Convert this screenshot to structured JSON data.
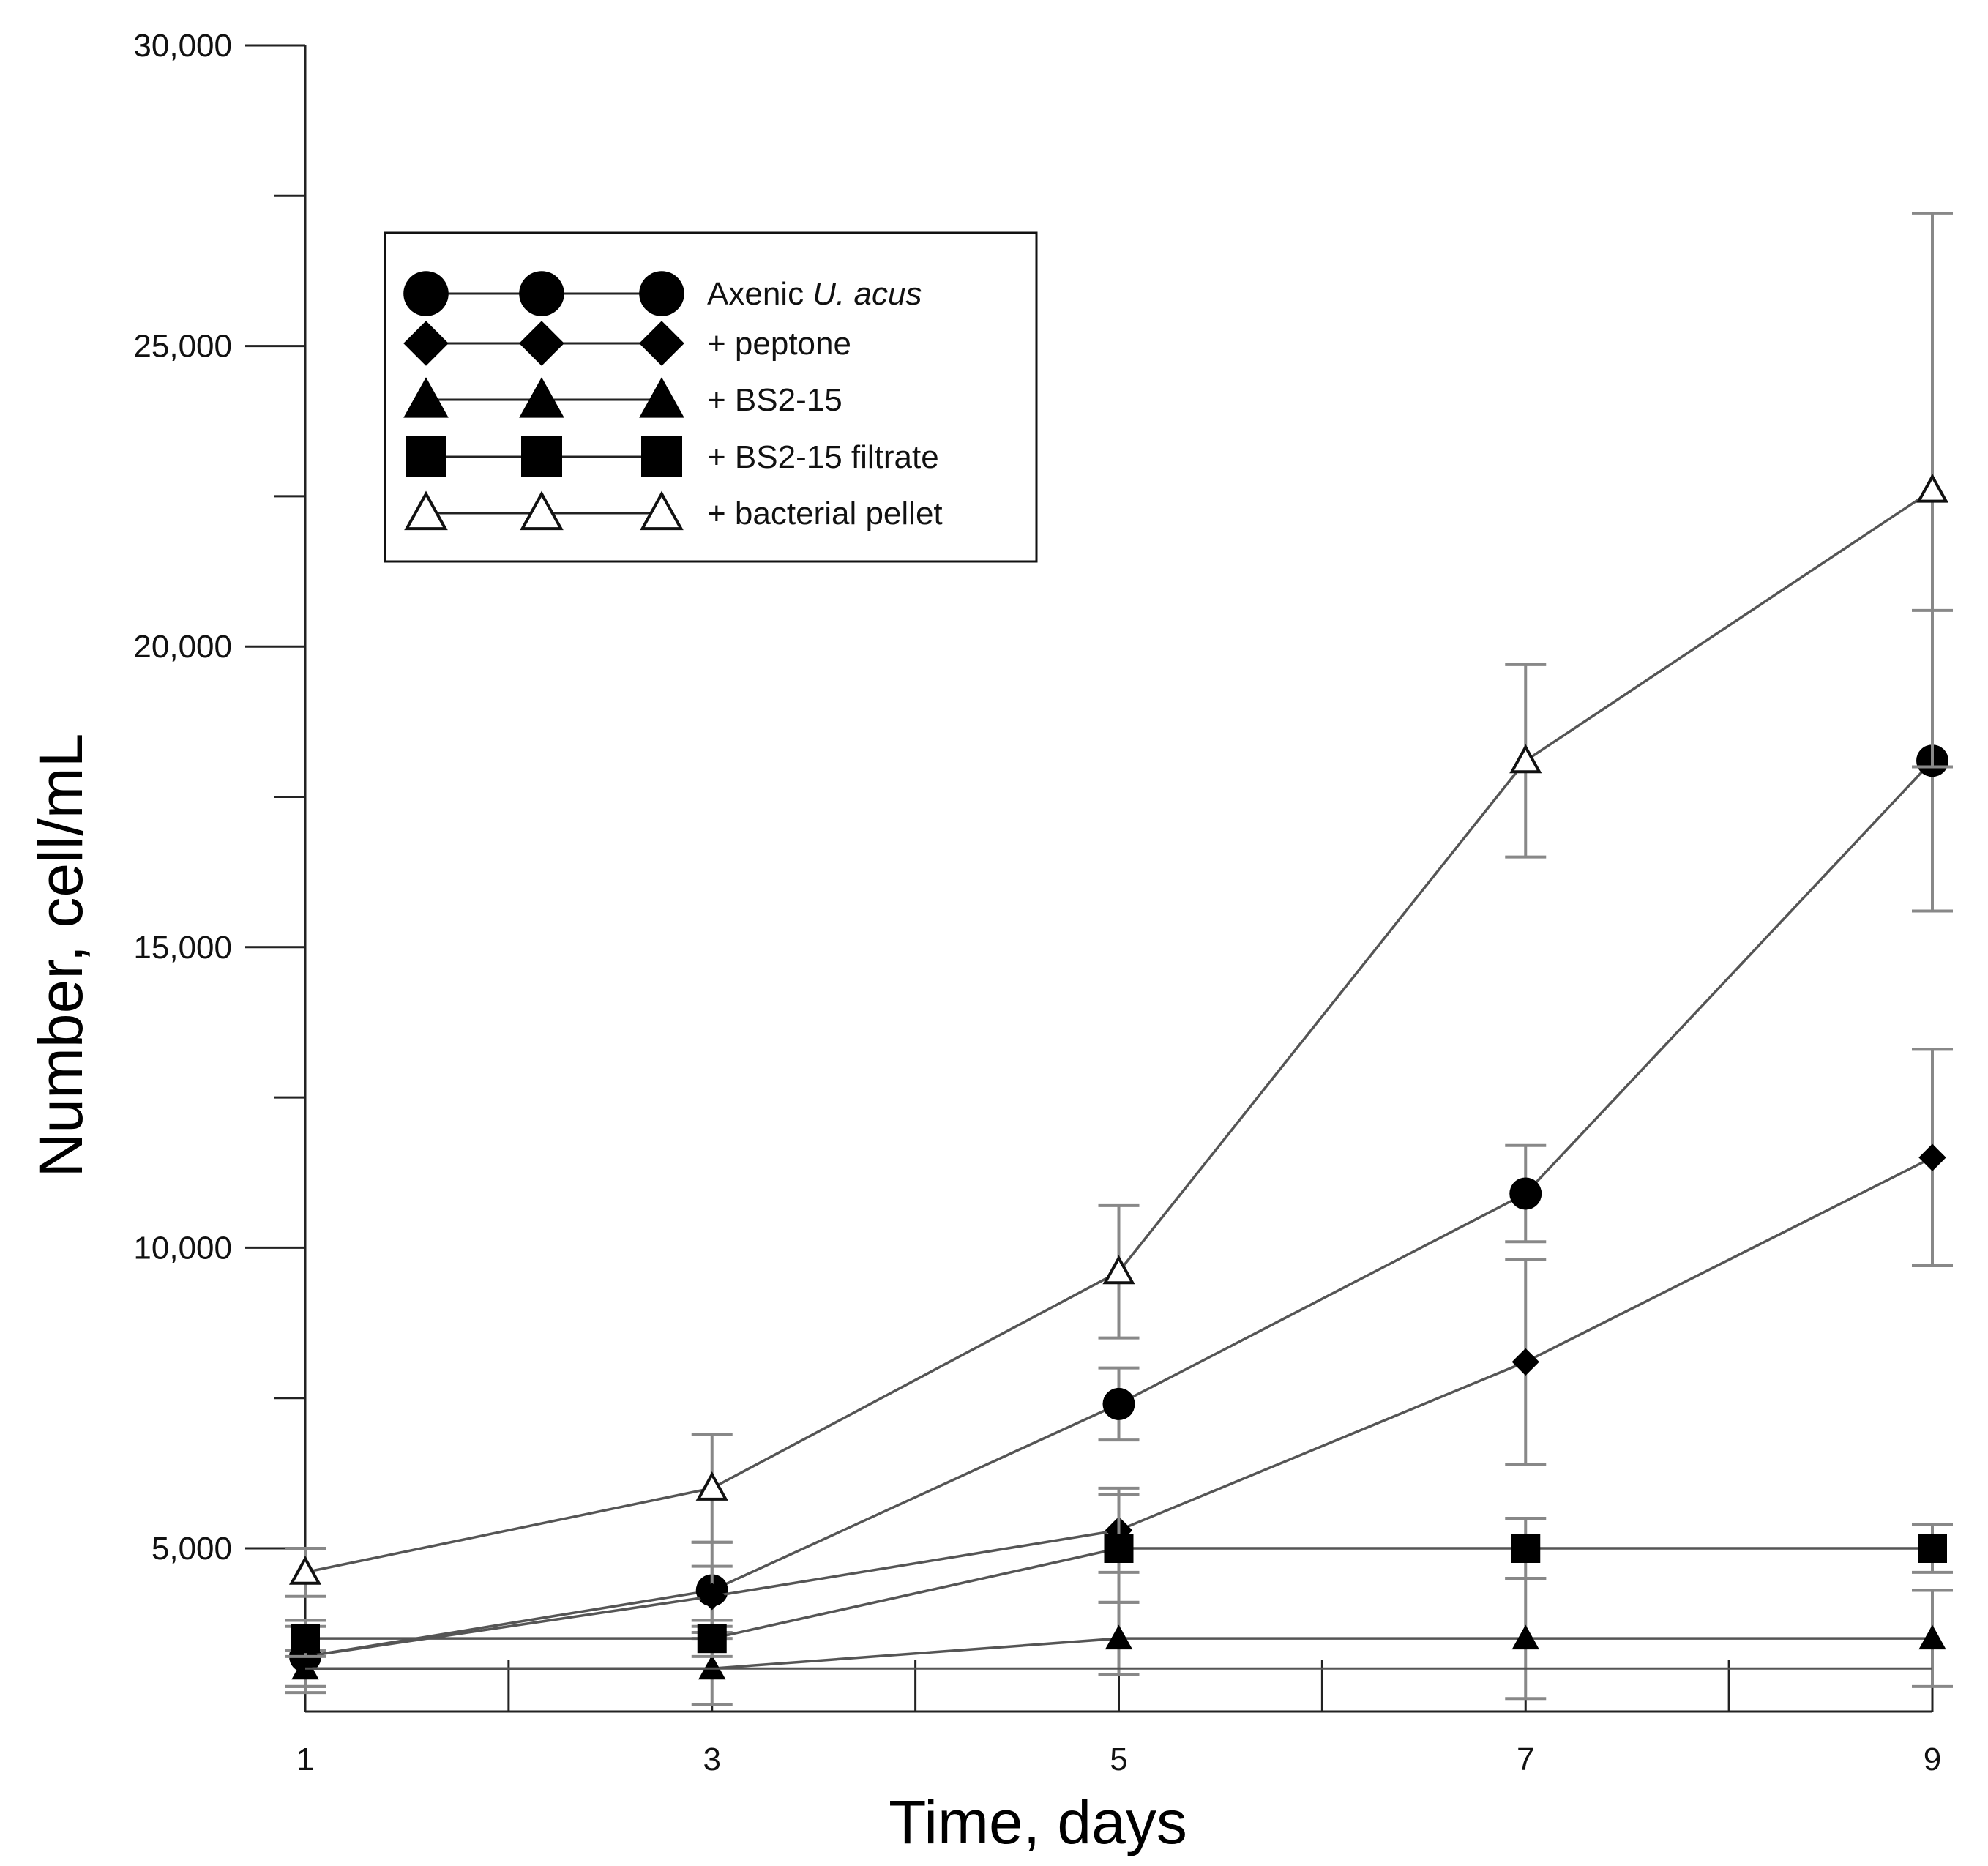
{
  "chart_data": {
    "type": "line",
    "title": "",
    "xlabel": "Time, days",
    "ylabel": "Number, cell/mL",
    "xlim": [
      1,
      9
    ],
    "ylim": [
      3000,
      30000
    ],
    "x_ticks": [
      1,
      3,
      5,
      7,
      9
    ],
    "x_tick_labels": [
      "1",
      "3",
      "5",
      "7",
      "9"
    ],
    "y_ticks": [
      5000,
      10000,
      15000,
      20000,
      25000,
      30000
    ],
    "y_tick_labels": [
      "5,000",
      "10,000",
      "15,000",
      "20,000",
      "25,000",
      "30,000"
    ],
    "x": [
      1,
      3,
      5,
      7,
      9
    ],
    "legend_position": "top-left",
    "legend_styled": {
      "prefix": "Axenic ",
      "italic": "U. acus"
    },
    "series": [
      {
        "name": "Axenic U. acus",
        "marker": "filled-circle",
        "values": [
          3200,
          4300,
          7400,
          10900,
          18100
        ],
        "errors": [
          600,
          800,
          600,
          800,
          2500
        ]
      },
      {
        "name": "+ peptone",
        "marker": "filled-diamond",
        "values": [
          3200,
          4200,
          5300,
          8100,
          11500
        ],
        "errors": [
          500,
          500,
          700,
          1700,
          1800
        ]
      },
      {
        "name": "+ BS2-15",
        "marker": "filled-triangle",
        "values": [
          3000,
          3000,
          3500,
          3500,
          3500
        ],
        "errors": [
          300,
          600,
          600,
          1000,
          800
        ]
      },
      {
        "name": "+ BS2-15 filtrate",
        "marker": "filled-square",
        "values": [
          3500,
          3500,
          5000,
          5000,
          5000
        ],
        "errors": [
          300,
          300,
          900,
          500,
          400
        ]
      },
      {
        "name": "+ bacterial pellet",
        "marker": "open-triangle",
        "values": [
          4600,
          6000,
          9600,
          18100,
          22600
        ],
        "errors": [
          400,
          900,
          1100,
          1600,
          4600
        ]
      }
    ]
  }
}
